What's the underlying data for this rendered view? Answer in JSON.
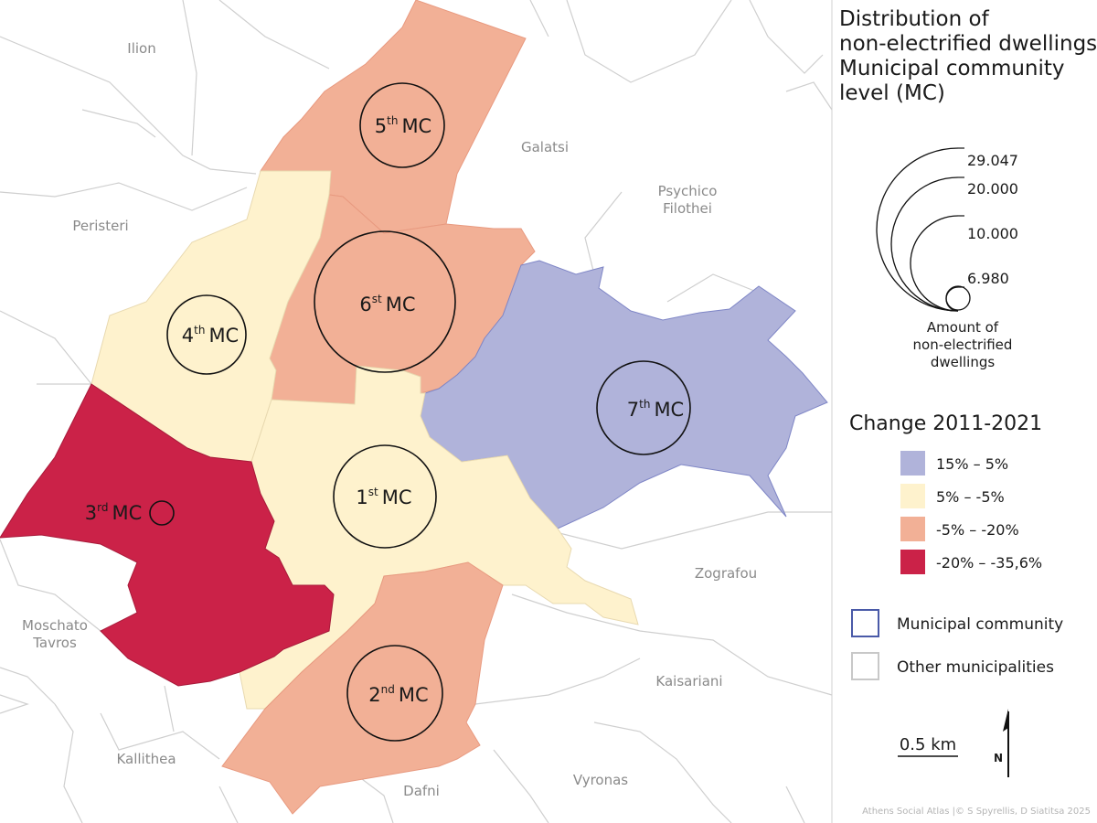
{
  "title_lines": [
    "Distribution of",
    "non-electrified dwellings,",
    "Municipal community",
    "level (MC)"
  ],
  "other_municipalities": [
    {
      "id": "ilion",
      "lines": [
        "Ilion"
      ]
    },
    {
      "id": "peristeri",
      "lines": [
        "Peristeri"
      ]
    },
    {
      "id": "galatsi",
      "lines": [
        "Galatsi"
      ]
    },
    {
      "id": "psychico",
      "lines": [
        "Psychico",
        "Filothei"
      ]
    },
    {
      "id": "zografou",
      "lines": [
        "Zografou"
      ]
    },
    {
      "id": "kaisariani",
      "lines": [
        "Kaisariani"
      ]
    },
    {
      "id": "vyronas",
      "lines": [
        "Vyronas"
      ]
    },
    {
      "id": "dafni",
      "lines": [
        "Dafni"
      ]
    },
    {
      "id": "kallithea",
      "lines": [
        "Kallithea"
      ]
    },
    {
      "id": "moschato",
      "lines": [
        "Moschato",
        "Tavros"
      ]
    }
  ],
  "communities": [
    {
      "id": "mc1",
      "num": "1",
      "sup": "st",
      "suffix": "MC",
      "change_class": "5% – -5%",
      "color": "#fef2cd"
    },
    {
      "id": "mc2",
      "num": "2",
      "sup": "nd",
      "suffix": "MC",
      "change_class": "-5% – -20%",
      "color": "#f2b096"
    },
    {
      "id": "mc3",
      "num": "3",
      "sup": "rd",
      "suffix": "MC",
      "change_class": "-20% – -35,6%",
      "color": "#cb2248"
    },
    {
      "id": "mc4",
      "num": "4",
      "sup": "th",
      "suffix": "MC",
      "change_class": "5% – -5%",
      "color": "#fef2cd"
    },
    {
      "id": "mc5",
      "num": "5",
      "sup": "th",
      "suffix": "MC",
      "change_class": "-5% – -20%",
      "color": "#f2b096"
    },
    {
      "id": "mc6",
      "num": "6",
      "sup": "st",
      "suffix": "MC",
      "change_class": "-5% – -20%",
      "color": "#f2b096"
    },
    {
      "id": "mc7",
      "num": "7",
      "sup": "th",
      "suffix": "MC",
      "change_class": "15% – 5%",
      "color": "#b0b3da"
    }
  ],
  "size_legend": {
    "values": [
      "29.047",
      "20.000",
      "10.000",
      "6.980"
    ],
    "caption_lines": [
      "Amount of",
      "non-electrified",
      "dwellings"
    ]
  },
  "change_legend": {
    "title": "Change 2011-2021",
    "classes": [
      {
        "label": "15% – 5%",
        "color": "#b0b3da"
      },
      {
        "label": "5% – -5%",
        "color": "#fef2cd"
      },
      {
        "label": "-5% – -20%",
        "color": "#f2b096"
      },
      {
        "label": "-20% – -35,6%",
        "color": "#cb2248"
      }
    ]
  },
  "boundary_legend": [
    {
      "label": "Municipal community",
      "stroke": "#4a5aa8"
    },
    {
      "label": "Other municipalities",
      "stroke": "#c8c8c8"
    }
  ],
  "scale_bar": "0.5 km",
  "north_label": "N",
  "credit": "Athens Social Atlas |© S Spyrellis, D Siatitsa 2025"
}
